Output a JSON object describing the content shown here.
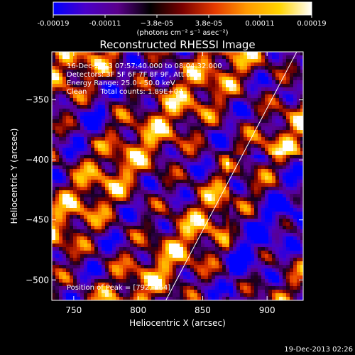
{
  "colorbar": {
    "ticks": [
      "-0.00019",
      "-0.00011",
      "−3.8e-05",
      "3.8e-05",
      "0.00011",
      "0.00019"
    ],
    "units": "(photons cm⁻² s⁻¹ asec⁻²)",
    "colors": [
      "#0000ff",
      "#4a00c8",
      "#5a008a",
      "#000000",
      "#7a0000",
      "#e63a00",
      "#ff9a00",
      "#ffd400",
      "#ffffff"
    ]
  },
  "chart_data": {
    "type": "heatmap",
    "title": "Reconstructed RHESSI Image",
    "xlabel": "Heliocentric X (arcsec)",
    "ylabel": "Heliocentric Y (arcsec)",
    "xlim": [
      733,
      928
    ],
    "ylim": [
      -517,
      -310
    ],
    "xticks": [
      750,
      800,
      850,
      900
    ],
    "yticks": [
      -350,
      -400,
      -450,
      -500
    ],
    "annotations": [
      "16-Dec-2013 07:57:40.000 to 08:04:32.000",
      "Detectors: 3F 5F 6F 7F 8F 9F, Att 0",
      "Energy Range: 25.0 - 50.0 keV",
      "Clean      Total counts: 1.89E+04"
    ],
    "peak_label": "Position of Peak = [792,-364]",
    "peak": [
      792,
      -364
    ],
    "limb_line": [
      [
        820,
        -520
      ],
      [
        923,
        -310
      ]
    ]
  },
  "footer": {
    "timestamp": "19-Dec-2013 02:26"
  }
}
